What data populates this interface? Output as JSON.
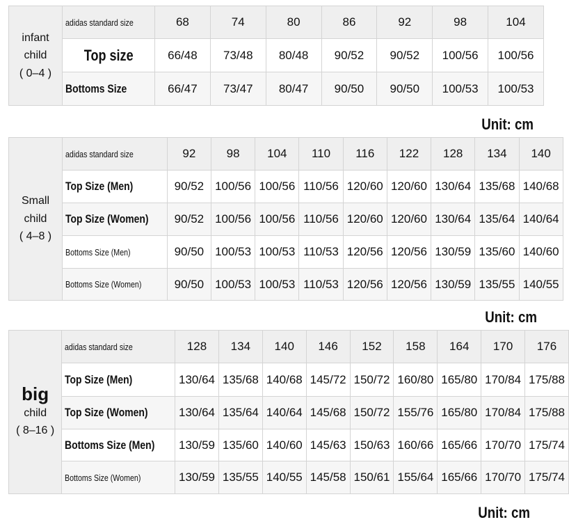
{
  "sections": [
    {
      "group": [
        "infant",
        "child",
        "( 0–4 )"
      ],
      "rows": [
        {
          "label": "adidas standard size",
          "values": [
            "68",
            "74",
            "80",
            "86",
            "92",
            "98",
            "104"
          ]
        },
        {
          "label": "Top size",
          "values": [
            "66/48",
            "73/48",
            "80/48",
            "90/52",
            "90/52",
            "100/56",
            "100/56"
          ]
        },
        {
          "label": "Bottoms Size",
          "values": [
            "66/47",
            "73/47",
            "80/47",
            "90/50",
            "90/50",
            "100/53",
            "100/53"
          ]
        }
      ],
      "unit": "Unit: cm"
    },
    {
      "group": [
        "Small",
        "child",
        "( 4–8 )"
      ],
      "rows": [
        {
          "label": "adidas standard size",
          "values": [
            "92",
            "98",
            "104",
            "110",
            "116",
            "122",
            "128",
            "134",
            "140"
          ]
        },
        {
          "label": "Top Size (Men)",
          "values": [
            "90/52",
            "100/56",
            "100/56",
            "110/56",
            "120/60",
            "120/60",
            "130/64",
            "135/68",
            "140/68"
          ]
        },
        {
          "label": "Top Size (Women)",
          "values": [
            "90/52",
            "100/56",
            "100/56",
            "110/56",
            "120/60",
            "120/60",
            "130/64",
            "135/64",
            "140/64"
          ]
        },
        {
          "label": "Bottoms Size (Men)",
          "values": [
            "90/50",
            "100/53",
            "100/53",
            "110/53",
            "120/56",
            "120/56",
            "130/59",
            "135/60",
            "140/60"
          ]
        },
        {
          "label": "Bottoms Size (Women)",
          "values": [
            "90/50",
            "100/53",
            "100/53",
            "110/53",
            "120/56",
            "120/56",
            "130/59",
            "135/55",
            "140/55"
          ]
        }
      ],
      "unit": "Unit: cm"
    },
    {
      "group": [
        "big",
        "child",
        "( 8–16 )"
      ],
      "rows": [
        {
          "label": "adidas standard size",
          "values": [
            "128",
            "134",
            "140",
            "146",
            "152",
            "158",
            "164",
            "170",
            "176"
          ]
        },
        {
          "label": "Top Size (Men)",
          "values": [
            "130/64",
            "135/68",
            "140/68",
            "145/72",
            "150/72",
            "160/80",
            "165/80",
            "170/84",
            "175/88"
          ]
        },
        {
          "label": "Top Size (Women)",
          "values": [
            "130/64",
            "135/64",
            "140/64",
            "145/68",
            "150/72",
            "155/76",
            "165/80",
            "170/84",
            "175/88"
          ]
        },
        {
          "label": "Bottoms Size (Men)",
          "values": [
            "130/59",
            "135/60",
            "140/60",
            "145/63",
            "150/63",
            "160/66",
            "165/66",
            "170/70",
            "175/74"
          ]
        },
        {
          "label": "Bottoms Size (Women)",
          "values": [
            "130/59",
            "135/55",
            "140/55",
            "145/58",
            "150/61",
            "155/64",
            "165/66",
            "170/70",
            "175/74"
          ]
        }
      ],
      "unit": "Unit: cm"
    }
  ]
}
